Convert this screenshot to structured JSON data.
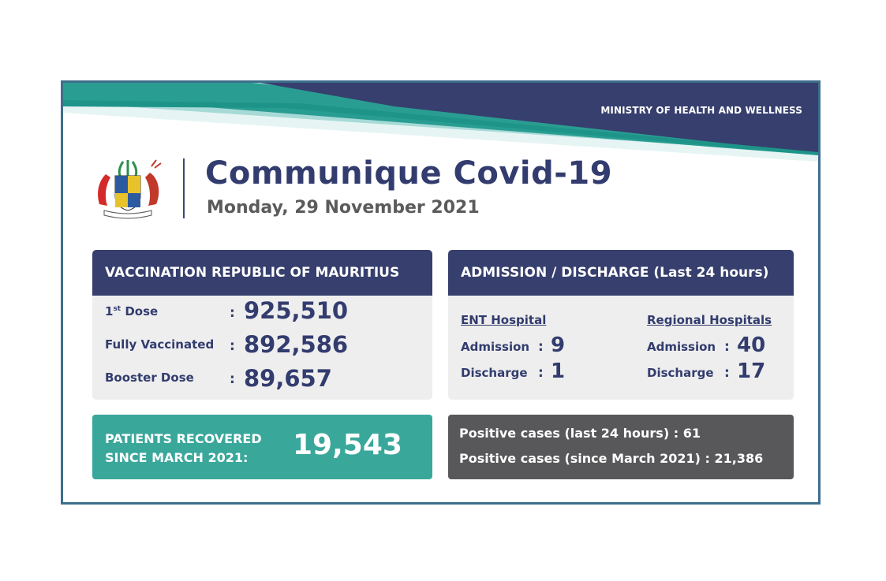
{
  "header": {
    "ministry": "MINISTRY OF HEALTH AND WELLNESS",
    "title": "Communique Covid-19",
    "date": "Monday, 29 November 2021"
  },
  "vaccination": {
    "heading": "VACCINATION REPUBLIC OF MAURITIUS",
    "rows": [
      {
        "label": "1",
        "sup": "st",
        "label_rest": " Dose",
        "colon": ":",
        "value": "925,510"
      },
      {
        "label": "Fully Vaccinated",
        "colon": ":",
        "value": "892,586"
      },
      {
        "label": "Booster Dose",
        "colon": ":",
        "value": "89,657"
      }
    ]
  },
  "admission": {
    "heading": "ADMISSION / DISCHARGE (Last 24 hours)",
    "ent": {
      "name": "ENT Hospital",
      "admission_label": "Admission",
      "admission_colon": ":",
      "admission_value": "9",
      "discharge_label": "Discharge",
      "discharge_colon": ":",
      "discharge_value": "1"
    },
    "regional": {
      "name": "Regional Hospitals",
      "admission_label": "Admission",
      "admission_colon": ":",
      "admission_value": "40",
      "discharge_label": "Discharge",
      "discharge_colon": ":",
      "discharge_value": "17"
    }
  },
  "recovered": {
    "line1": "PATIENTS RECOVERED",
    "line2": "SINCE MARCH 2021:",
    "value": "19,543"
  },
  "positive": {
    "line1_label": "Positive cases (last 24 hours) :",
    "line1_value": "61",
    "line2_label": "Positive cases (since March 2021) :",
    "line2_value": "21,386"
  },
  "colors": {
    "navy": "#363f6d",
    "teal": "#3aa79b",
    "light_teal": "#a7dad7",
    "grey_panel": "#eeeeee",
    "dark_grey": "#58585a",
    "border": "#3d6e8c"
  },
  "crest": {
    "icon": "coat-of-arms-icon"
  }
}
